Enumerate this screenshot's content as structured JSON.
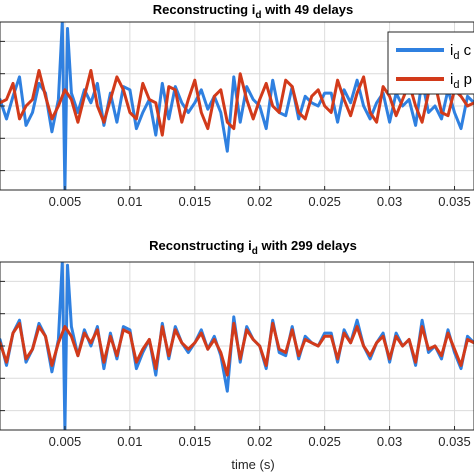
{
  "colors": {
    "series_blue": "#2f80e0",
    "series_red": "#d23a1a",
    "grid": "#dcdcdc",
    "axis": "#262626"
  },
  "chart_data": [
    {
      "type": "line",
      "title_main": "Reconstructing i",
      "title_sub": "d",
      "title_tail": " with 49 delays",
      "xlabel": "",
      "xlim": [
        0.0,
        0.0365
      ],
      "xticks": [
        0.005,
        0.01,
        0.015,
        0.02,
        0.025,
        0.03,
        0.035
      ],
      "xtick_labels": [
        "0.005",
        "0.01",
        "0.015",
        "0.02",
        "0.025",
        "0.03",
        "0.035"
      ],
      "ylim": [
        -1.3,
        1.3
      ],
      "yticks": [
        -1.0,
        -0.5,
        0.0,
        0.5,
        1.0
      ],
      "grid": true,
      "legend": {
        "position": "top-right",
        "entries": [
          {
            "main": "i",
            "sub": "d",
            "tail": " c"
          },
          {
            "main": "i",
            "sub": "d",
            "tail": " p"
          }
        ]
      },
      "series": [
        {
          "x": [
            0.0,
            0.0005,
            0.001,
            0.0015,
            0.002,
            0.0025,
            0.003,
            0.0035,
            0.004,
            0.0045,
            0.0048,
            0.005,
            0.0052,
            0.0055,
            0.006,
            0.0065,
            0.007,
            0.0075,
            0.008,
            0.0085,
            0.009,
            0.0095,
            0.01,
            0.0105,
            0.011,
            0.0115,
            0.012,
            0.0125,
            0.013,
            0.0135,
            0.014,
            0.0145,
            0.015,
            0.0155,
            0.016,
            0.0165,
            0.017,
            0.0175,
            0.018,
            0.0185,
            0.019,
            0.0195,
            0.02,
            0.0205,
            0.021,
            0.0215,
            0.022,
            0.0225,
            0.023,
            0.0235,
            0.024,
            0.0245,
            0.025,
            0.0255,
            0.026,
            0.0265,
            0.027,
            0.0275,
            0.028,
            0.0285,
            0.029,
            0.0295,
            0.03,
            0.0305,
            0.031,
            0.0315,
            0.032,
            0.0325,
            0.033,
            0.0335,
            0.034,
            0.0345,
            0.035,
            0.0355,
            0.036,
            0.0365
          ],
          "y": [
            0.1,
            -0.2,
            0.15,
            0.45,
            -0.3,
            -0.1,
            0.35,
            0.2,
            -0.4,
            0.1,
            1.3,
            -1.3,
            1.2,
            0.2,
            -0.1,
            0.25,
            0.05,
            0.35,
            -0.3,
            0.2,
            -0.25,
            0.3,
            0.25,
            -0.35,
            -0.1,
            0.1,
            -0.45,
            0.35,
            -0.2,
            0.3,
            0.05,
            -0.1,
            0.05,
            0.25,
            -0.05,
            0.15,
            -0.1,
            -0.7,
            0.45,
            -0.25,
            0.3,
            0.1,
            0.0,
            -0.35,
            0.4,
            -0.1,
            -0.15,
            0.3,
            -0.2,
            0.15,
            0.05,
            0.0,
            0.2,
            0.2,
            -0.25,
            0.25,
            0.05,
            0.4,
            0.0,
            -0.2,
            0.05,
            0.2,
            -0.25,
            0.2,
            0.0,
            0.1,
            -0.3,
            0.4,
            -0.1,
            0.0,
            -0.2,
            0.25,
            -0.1,
            -0.35,
            0.15,
            0.05
          ]
        },
        {
          "x": [
            0.0,
            0.0005,
            0.001,
            0.0015,
            0.002,
            0.0025,
            0.003,
            0.0035,
            0.004,
            0.0045,
            0.005,
            0.0055,
            0.006,
            0.0065,
            0.007,
            0.0075,
            0.008,
            0.0085,
            0.009,
            0.0095,
            0.01,
            0.0105,
            0.011,
            0.0115,
            0.012,
            0.0125,
            0.013,
            0.0135,
            0.014,
            0.0145,
            0.015,
            0.0155,
            0.016,
            0.0165,
            0.017,
            0.0175,
            0.018,
            0.0185,
            0.019,
            0.0195,
            0.02,
            0.0205,
            0.021,
            0.0215,
            0.022,
            0.0225,
            0.023,
            0.0235,
            0.024,
            0.0245,
            0.025,
            0.0255,
            0.026,
            0.0265,
            0.027,
            0.0275,
            0.028,
            0.0285,
            0.029,
            0.0295,
            0.03,
            0.0305,
            0.031,
            0.0315,
            0.032,
            0.0325,
            0.033,
            0.0335,
            0.034,
            0.0345,
            0.035,
            0.0355,
            0.036,
            0.0365
          ],
          "y": [
            0.05,
            0.1,
            0.35,
            -0.2,
            0.0,
            0.1,
            0.55,
            0.15,
            -0.2,
            0.0,
            0.25,
            0.1,
            -0.25,
            0.15,
            0.55,
            0.0,
            -0.25,
            0.1,
            0.45,
            0.25,
            -0.1,
            -0.2,
            0.35,
            0.1,
            0.05,
            -0.45,
            0.3,
            0.25,
            -0.25,
            0.1,
            0.4,
            -0.1,
            -0.35,
            0.15,
            0.25,
            -0.25,
            -0.35,
            0.5,
            0.1,
            -0.2,
            0.1,
            0.35,
            0.0,
            -0.1,
            0.4,
            0.3,
            -0.1,
            -0.2,
            0.15,
            0.25,
            0.0,
            -0.1,
            0.4,
            0.1,
            -0.15,
            0.2,
            0.45,
            -0.1,
            -0.25,
            0.3,
            0.15,
            -0.15,
            0.1,
            0.35,
            0.0,
            -0.25,
            0.2,
            0.35,
            -0.1,
            -0.15,
            0.25,
            0.15,
            0.0,
            0.05
          ]
        }
      ]
    },
    {
      "type": "line",
      "title_main": "Reconstructing i",
      "title_sub": "d",
      "title_tail": " with 299 delays",
      "xlabel": "time (s)",
      "xlim": [
        0.0,
        0.0365
      ],
      "xticks": [
        0.005,
        0.01,
        0.015,
        0.02,
        0.025,
        0.03,
        0.035
      ],
      "xtick_labels": [
        "0.005",
        "0.01",
        "0.015",
        "0.02",
        "0.025",
        "0.03",
        "0.035"
      ],
      "ylim": [
        -1.3,
        1.3
      ],
      "yticks": [
        -1.0,
        -0.5,
        0.0,
        0.5,
        1.0
      ],
      "grid": true,
      "series": [
        {
          "x": [
            0.0,
            0.0005,
            0.001,
            0.0015,
            0.002,
            0.0025,
            0.003,
            0.0035,
            0.004,
            0.0045,
            0.0048,
            0.005,
            0.0052,
            0.0055,
            0.006,
            0.0065,
            0.007,
            0.0075,
            0.008,
            0.0085,
            0.009,
            0.0095,
            0.01,
            0.0105,
            0.011,
            0.0115,
            0.012,
            0.0125,
            0.013,
            0.0135,
            0.014,
            0.0145,
            0.015,
            0.0155,
            0.016,
            0.0165,
            0.017,
            0.0175,
            0.018,
            0.0185,
            0.019,
            0.0195,
            0.02,
            0.0205,
            0.021,
            0.0215,
            0.022,
            0.0225,
            0.023,
            0.0235,
            0.024,
            0.0245,
            0.025,
            0.0255,
            0.026,
            0.0265,
            0.027,
            0.0275,
            0.028,
            0.0285,
            0.029,
            0.0295,
            0.03,
            0.0305,
            0.031,
            0.0315,
            0.032,
            0.0325,
            0.033,
            0.0335,
            0.034,
            0.0345,
            0.035,
            0.0355,
            0.036,
            0.0365
          ],
          "y": [
            0.1,
            -0.3,
            0.2,
            0.4,
            -0.25,
            -0.05,
            0.35,
            0.15,
            -0.4,
            0.1,
            1.3,
            -1.3,
            1.25,
            0.3,
            -0.15,
            0.25,
            0.0,
            0.3,
            -0.35,
            0.2,
            -0.2,
            0.3,
            0.25,
            -0.35,
            -0.1,
            0.1,
            -0.45,
            0.35,
            -0.2,
            0.3,
            0.05,
            -0.1,
            0.05,
            0.25,
            -0.05,
            0.15,
            -0.15,
            -0.7,
            0.45,
            -0.25,
            0.3,
            0.1,
            0.0,
            -0.35,
            0.4,
            -0.1,
            -0.15,
            0.3,
            -0.2,
            0.15,
            0.05,
            0.0,
            0.2,
            0.2,
            -0.25,
            0.25,
            0.05,
            0.4,
            0.0,
            -0.2,
            0.05,
            0.2,
            -0.25,
            0.2,
            0.0,
            0.1,
            -0.3,
            0.4,
            -0.1,
            0.0,
            -0.2,
            0.25,
            -0.1,
            -0.35,
            0.15,
            0.05
          ]
        },
        {
          "x": [
            0.0,
            0.0005,
            0.001,
            0.0015,
            0.002,
            0.0025,
            0.003,
            0.0035,
            0.004,
            0.0045,
            0.005,
            0.0055,
            0.006,
            0.0065,
            0.007,
            0.0075,
            0.008,
            0.0085,
            0.009,
            0.0095,
            0.01,
            0.0105,
            0.011,
            0.0115,
            0.012,
            0.0125,
            0.013,
            0.0135,
            0.014,
            0.0145,
            0.015,
            0.0155,
            0.016,
            0.0165,
            0.017,
            0.0175,
            0.018,
            0.0185,
            0.019,
            0.0195,
            0.02,
            0.0205,
            0.021,
            0.0215,
            0.022,
            0.0225,
            0.023,
            0.0235,
            0.024,
            0.0245,
            0.025,
            0.0255,
            0.026,
            0.0265,
            0.027,
            0.0275,
            0.028,
            0.0285,
            0.029,
            0.0295,
            0.03,
            0.0305,
            0.031,
            0.0315,
            0.032,
            0.0325,
            0.033,
            0.0335,
            0.034,
            0.0345,
            0.035,
            0.0355,
            0.036,
            0.0365
          ],
          "y": [
            0.05,
            -0.25,
            0.2,
            0.35,
            -0.2,
            -0.05,
            0.3,
            0.15,
            -0.3,
            0.05,
            0.3,
            0.15,
            -0.15,
            0.2,
            0.05,
            0.25,
            -0.25,
            0.15,
            -0.15,
            0.25,
            0.2,
            -0.25,
            -0.05,
            0.1,
            -0.35,
            0.3,
            -0.15,
            0.25,
            0.05,
            -0.05,
            0.05,
            0.2,
            -0.05,
            0.1,
            -0.1,
            -0.45,
            0.35,
            -0.2,
            0.25,
            0.1,
            0.0,
            -0.3,
            0.35,
            -0.05,
            -0.1,
            0.25,
            -0.15,
            0.1,
            0.05,
            0.0,
            0.15,
            0.15,
            -0.2,
            0.2,
            0.05,
            0.3,
            0.0,
            -0.15,
            0.05,
            0.15,
            -0.2,
            0.15,
            0.0,
            0.1,
            -0.25,
            0.3,
            -0.05,
            0.0,
            -0.15,
            0.2,
            -0.05,
            -0.3,
            0.1,
            0.05
          ]
        }
      ]
    }
  ]
}
